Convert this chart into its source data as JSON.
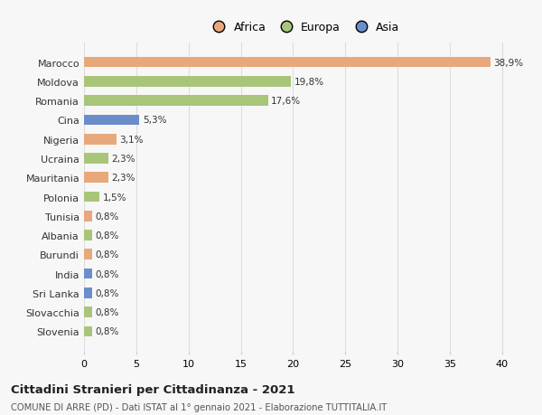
{
  "categories": [
    "Slovenia",
    "Slovacchia",
    "Sri Lanka",
    "India",
    "Burundi",
    "Albania",
    "Tunisia",
    "Polonia",
    "Mauritania",
    "Ucraina",
    "Nigeria",
    "Cina",
    "Romania",
    "Moldova",
    "Marocco"
  ],
  "values": [
    0.8,
    0.8,
    0.8,
    0.8,
    0.8,
    0.8,
    0.8,
    1.5,
    2.3,
    2.3,
    3.1,
    5.3,
    17.6,
    19.8,
    38.9
  ],
  "colors": [
    "#a8c57a",
    "#a8c57a",
    "#6b8ecb",
    "#6b8ecb",
    "#e8a87c",
    "#a8c57a",
    "#e8a87c",
    "#a8c57a",
    "#e8a87c",
    "#a8c57a",
    "#e8a87c",
    "#6b8ecb",
    "#a8c57a",
    "#a8c57a",
    "#e8a87c"
  ],
  "labels": [
    "0,8%",
    "0,8%",
    "0,8%",
    "0,8%",
    "0,8%",
    "0,8%",
    "0,8%",
    "1,5%",
    "2,3%",
    "2,3%",
    "3,1%",
    "5,3%",
    "17,6%",
    "19,8%",
    "38,9%"
  ],
  "legend_labels": [
    "Africa",
    "Europa",
    "Asia"
  ],
  "legend_colors": [
    "#e8a87c",
    "#a8c57a",
    "#6b8ecb"
  ],
  "title": "Cittadini Stranieri per Cittadinanza - 2021",
  "subtitle": "COMUNE DI ARRE (PD) - Dati ISTAT al 1° gennaio 2021 - Elaborazione TUTTITALIA.IT",
  "xlim": [
    0,
    42
  ],
  "xticks": [
    0,
    5,
    10,
    15,
    20,
    25,
    30,
    35,
    40
  ],
  "background_color": "#f7f7f7",
  "grid_color": "#dddddd",
  "bar_height": 0.55
}
